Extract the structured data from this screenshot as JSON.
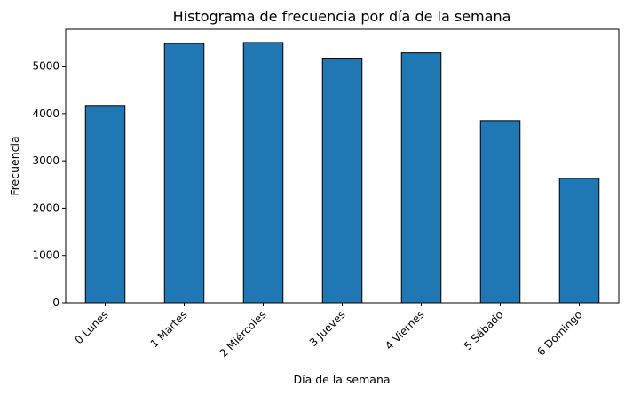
{
  "chart_data": {
    "type": "bar",
    "title": "Histograma de frecuencia por día de la semana",
    "xlabel": "Día de la semana",
    "ylabel": "Frecuencia",
    "categories": [
      "0 Lunes",
      "1 Martes",
      "2 Miércoles",
      "3 Jueves",
      "4 Viernes",
      "5 Sábado",
      "6 Domingo"
    ],
    "values": [
      4170,
      5480,
      5500,
      5170,
      5280,
      3850,
      2630
    ],
    "ylim": [
      0,
      5780
    ],
    "yticks": [
      0,
      1000,
      2000,
      3000,
      4000,
      5000
    ],
    "bar_color": "#1f77b4",
    "edge_color": "#000000",
    "grid": false,
    "legend": "none"
  }
}
